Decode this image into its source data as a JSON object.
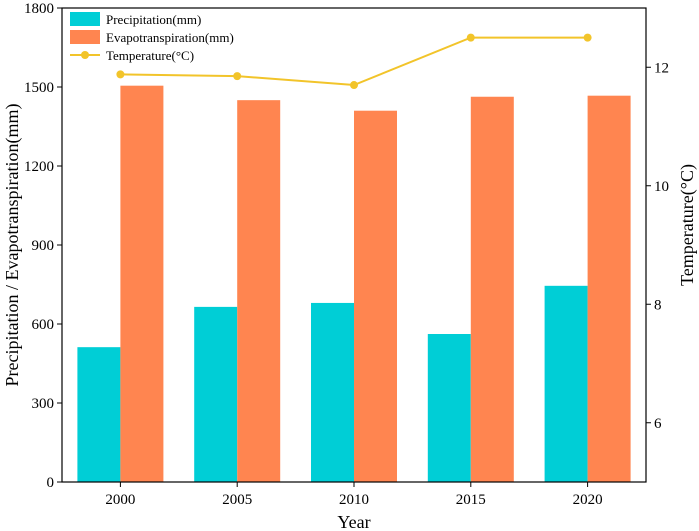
{
  "chart_data": {
    "type": "bar",
    "categories": [
      "2000",
      "2005",
      "2010",
      "2015",
      "2020"
    ],
    "series": [
      {
        "name": "Precipitation(mm)",
        "kind": "bar",
        "axis": "left",
        "color": "#00CED6",
        "values": [
          512,
          665,
          680,
          562,
          745
        ]
      },
      {
        "name": "Evapotranspiration(mm)",
        "kind": "bar",
        "axis": "left",
        "color": "#FF8550",
        "values": [
          1505,
          1450,
          1410,
          1463,
          1467
        ]
      },
      {
        "name": "Temperature(°C)",
        "kind": "line",
        "axis": "right",
        "color": "#F2C42A",
        "values": [
          11.88,
          11.85,
          11.7,
          12.5,
          12.5
        ]
      }
    ],
    "xlabel": "Year",
    "ylabel": "Precipitation / Evapotranspiration(mm)",
    "y2label": "Temperature(°C)",
    "ylim": [
      0,
      1800
    ],
    "yticks": [
      "0",
      "300",
      "600",
      "900",
      "1200",
      "1500",
      "1800"
    ],
    "y2lim": [
      5,
      13
    ],
    "y2ticks": [
      "6",
      "8",
      "10",
      "12"
    ],
    "legend": "top-left"
  }
}
